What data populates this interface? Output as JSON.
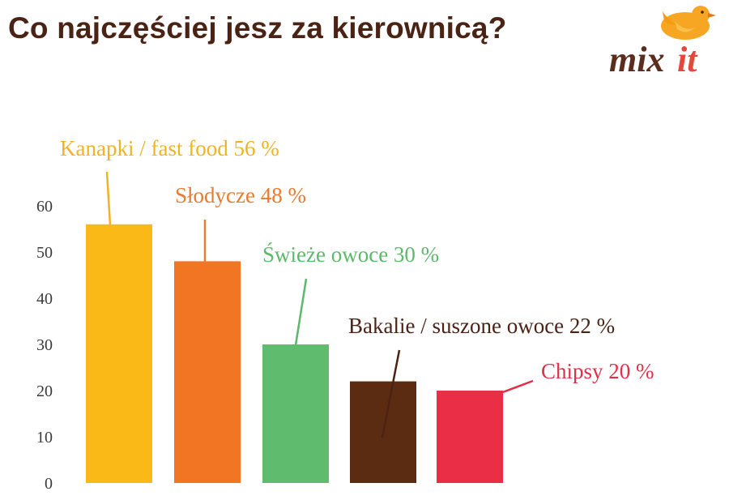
{
  "title": "Co najczęściej jesz za kierownicą?",
  "logo": {
    "text_left": "mix",
    "text_right": "it"
  },
  "colors": {
    "title": "#4a2315",
    "logo_brown": "#5a2d1e",
    "logo_red": "#e5473b",
    "bird": "#f6a623"
  },
  "chart_data": {
    "type": "bar",
    "title": "",
    "xlabel": "",
    "ylabel": "",
    "ylim": [
      0,
      60
    ],
    "yticks": [
      0,
      10,
      20,
      30,
      40,
      50,
      60
    ],
    "grid": false,
    "categories": [
      "Kanapki / fast food",
      "Słodycze",
      "Świeże owoce",
      "Bakalie / suszone owoce",
      "Chipsy"
    ],
    "values": [
      56,
      48,
      30,
      22,
      20
    ],
    "labels": [
      "Kanapki / fast food 56 %",
      "Słodycze 48 %",
      "Świeże owoce 30 %",
      "Bakalie / suszone owoce 22 %",
      "Chipsy 20 %"
    ],
    "colors": [
      "#fbb917",
      "#f27523",
      "#5fbc6f",
      "#5b2c12",
      "#ea2e46"
    ],
    "label_colors": [
      "#f0b323",
      "#ea7a2d",
      "#5cb96b",
      "#4a2315",
      "#e03049"
    ]
  }
}
